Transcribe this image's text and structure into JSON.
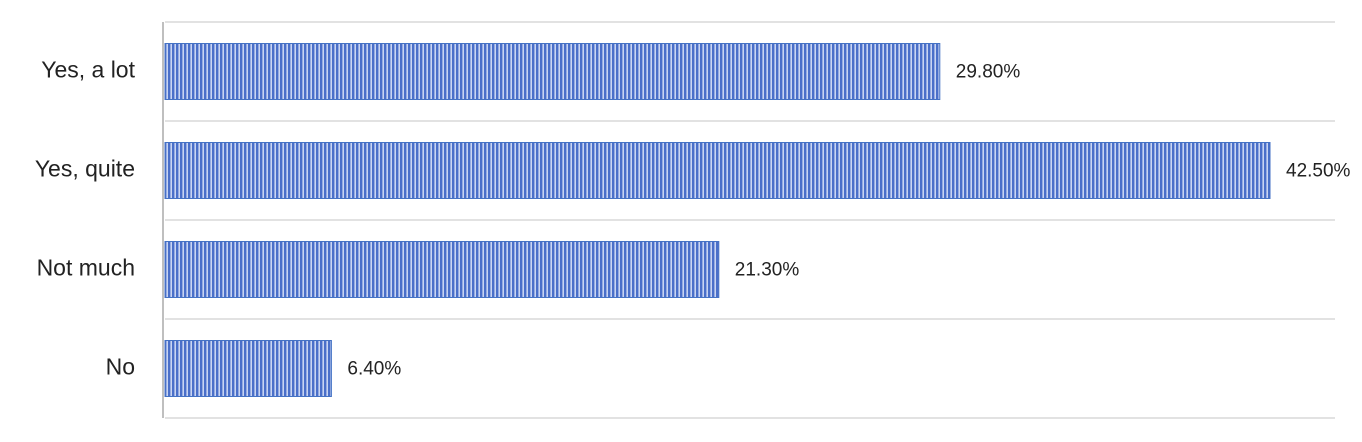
{
  "chart_data": {
    "type": "hbar",
    "categories": [
      "Yes, a lot",
      "Yes, quite",
      "Not much",
      "No"
    ],
    "values": [
      29.8,
      42.5,
      21.3,
      6.4
    ],
    "value_labels": [
      "29.80%",
      "42.50%",
      "21.30%",
      "6.40%"
    ],
    "color": "#4472c4",
    "xlim": [
      0,
      45
    ]
  }
}
